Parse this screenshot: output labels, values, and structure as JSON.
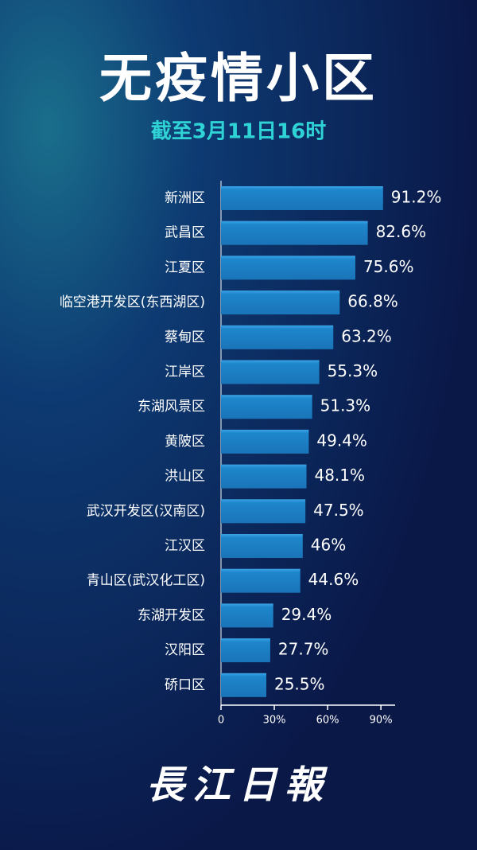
{
  "chart_data": {
    "type": "barh",
    "title": "无疫情小区",
    "subtitle": "截至3月11日16时",
    "categories": [
      "新洲区",
      "武昌区",
      "江夏区",
      "临空港开发区(东西湖区)",
      "蔡甸区",
      "江岸区",
      "东湖风景区",
      "黄陂区",
      "洪山区",
      "武汉开发区(汉南区)",
      "江汉区",
      "青山区(武汉化工区)",
      "东湖开发区",
      "汉阳区",
      "硚口区"
    ],
    "values": [
      91.2,
      82.6,
      75.6,
      66.8,
      63.2,
      55.3,
      51.3,
      49.4,
      48.1,
      47.5,
      46,
      44.6,
      29.4,
      27.7,
      25.5
    ],
    "value_labels": [
      "91.2%",
      "82.6%",
      "75.6%",
      "66.8%",
      "63.2%",
      "55.3%",
      "51.3%",
      "49.4%",
      "48.1%",
      "47.5%",
      "46%",
      "44.6%",
      "29.4%",
      "27.7%",
      "25.5%"
    ],
    "color": "#1e86cc",
    "xlim": [
      0,
      98
    ],
    "xticks": [
      0,
      {
        "value": 30,
        "label": "30%"
      },
      {
        "value": 60,
        "label": "60%"
      },
      {
        "value": 90,
        "label": "90%"
      }
    ],
    "source": "長江日報"
  }
}
